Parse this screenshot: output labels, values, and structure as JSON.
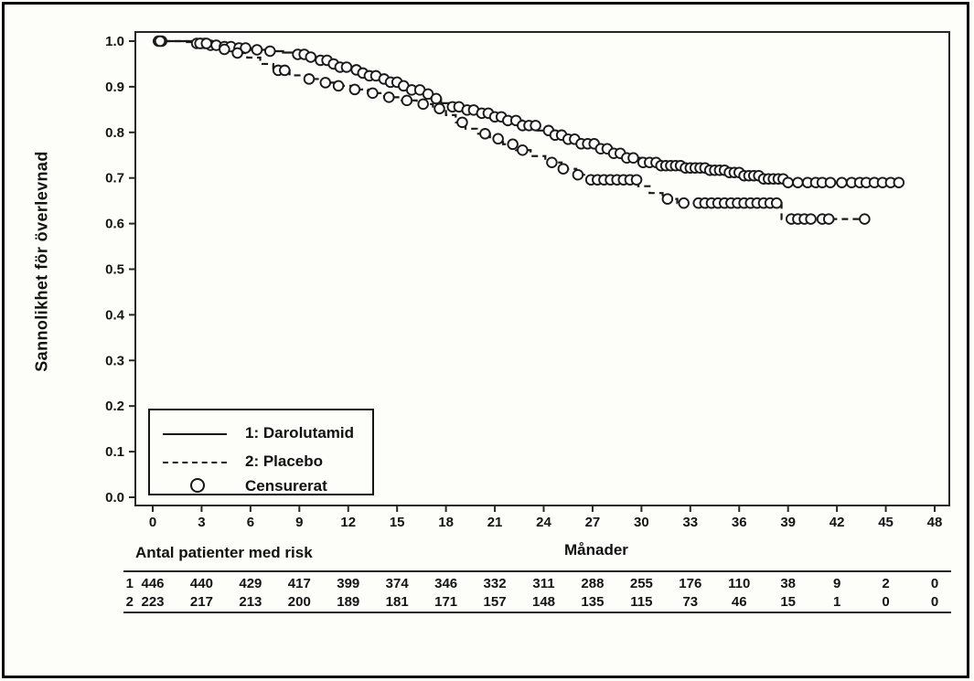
{
  "chart_data": {
    "type": "line",
    "subtype": "kaplan-meier-step",
    "title": "",
    "xlabel": "Månader",
    "ylabel": "Sannolikhet för överlevnad",
    "xlim": [
      0,
      48
    ],
    "ylim": [
      0.0,
      1.0
    ],
    "grid": false,
    "xticks": [
      0,
      3,
      6,
      9,
      12,
      15,
      18,
      21,
      24,
      27,
      30,
      33,
      36,
      39,
      42,
      45,
      48
    ],
    "yticks": [
      0.0,
      0.1,
      0.2,
      0.3,
      0.4,
      0.5,
      0.6,
      0.7,
      0.8,
      0.9,
      1.0
    ],
    "colors": {
      "curve": "#1a1a1a",
      "axis": "#262626",
      "background": "#fdfdfa"
    },
    "legend_position": "lower-left-inset",
    "series": [
      {
        "name": "1: Darolutamid",
        "line_style": "solid",
        "color": "#1a1a1a",
        "end_month": 46.0,
        "steps": [
          [
            0,
            1.0
          ],
          [
            2.1,
            0.998
          ],
          [
            2.7,
            0.995
          ],
          [
            3.4,
            0.991
          ],
          [
            4.2,
            0.988
          ],
          [
            5.0,
            0.985
          ],
          [
            6.0,
            0.981
          ],
          [
            7.0,
            0.978
          ],
          [
            8.0,
            0.975
          ],
          [
            8.8,
            0.971
          ],
          [
            9.5,
            0.965
          ],
          [
            10.2,
            0.958
          ],
          [
            10.8,
            0.95
          ],
          [
            11.4,
            0.943
          ],
          [
            12.0,
            0.937
          ],
          [
            12.6,
            0.93
          ],
          [
            13.2,
            0.924
          ],
          [
            13.9,
            0.917
          ],
          [
            14.6,
            0.91
          ],
          [
            15.3,
            0.902
          ],
          [
            15.9,
            0.893
          ],
          [
            16.5,
            0.884
          ],
          [
            17.1,
            0.874
          ],
          [
            17.7,
            0.864
          ],
          [
            18.3,
            0.856
          ],
          [
            19.1,
            0.849
          ],
          [
            20.0,
            0.842
          ],
          [
            20.9,
            0.834
          ],
          [
            21.8,
            0.826
          ],
          [
            22.7,
            0.815
          ],
          [
            23.6,
            0.804
          ],
          [
            24.5,
            0.794
          ],
          [
            25.4,
            0.785
          ],
          [
            26.3,
            0.775
          ],
          [
            27.2,
            0.764
          ],
          [
            28.1,
            0.754
          ],
          [
            29.0,
            0.744
          ],
          [
            30.0,
            0.734
          ],
          [
            31.0,
            0.727
          ],
          [
            32.5,
            0.722
          ],
          [
            34.0,
            0.717
          ],
          [
            35.3,
            0.712
          ],
          [
            36.2,
            0.705
          ],
          [
            37.3,
            0.698
          ],
          [
            38.8,
            0.69
          ]
        ],
        "censor_months": [
          0.35,
          0.55,
          2.7,
          2.95,
          3.2,
          3.55,
          3.9,
          4.4,
          4.8,
          5.3,
          5.7,
          6.4,
          7.2,
          8.9,
          9.3,
          9.7,
          10.3,
          10.7,
          11.1,
          11.5,
          11.9,
          12.5,
          12.9,
          13.3,
          13.7,
          14.2,
          14.6,
          15.0,
          15.4,
          15.9,
          16.4,
          16.9,
          17.4,
          18.4,
          18.8,
          19.3,
          19.7,
          20.2,
          20.6,
          21.0,
          21.4,
          21.8,
          22.3,
          22.7,
          23.1,
          23.5,
          24.3,
          24.7,
          25.1,
          25.5,
          25.9,
          26.3,
          26.7,
          27.1,
          27.5,
          27.9,
          28.3,
          28.7,
          29.1,
          29.5,
          30.1,
          30.5,
          30.9,
          31.2,
          31.5,
          31.8,
          32.1,
          32.4,
          32.7,
          33.0,
          33.3,
          33.6,
          33.9,
          34.2,
          34.5,
          34.8,
          35.1,
          35.4,
          35.7,
          36.0,
          36.3,
          36.6,
          36.9,
          37.2,
          37.5,
          37.8,
          38.1,
          38.4,
          38.7,
          39.0,
          39.6,
          40.2,
          40.7,
          41.1,
          41.6,
          42.3,
          42.9,
          43.4,
          43.8,
          44.3,
          44.8,
          45.3,
          45.8
        ]
      },
      {
        "name": "2: Placebo",
        "line_style": "dashed",
        "color": "#1a1a1a",
        "end_month": 44.0,
        "steps": [
          [
            0,
            1.0
          ],
          [
            2.6,
            0.995
          ],
          [
            3.4,
            0.989
          ],
          [
            4.2,
            0.982
          ],
          [
            5.0,
            0.974
          ],
          [
            5.8,
            0.964
          ],
          [
            6.6,
            0.95
          ],
          [
            7.4,
            0.936
          ],
          [
            8.4,
            0.925
          ],
          [
            9.4,
            0.917
          ],
          [
            10.4,
            0.909
          ],
          [
            11.4,
            0.902
          ],
          [
            12.3,
            0.894
          ],
          [
            13.2,
            0.886
          ],
          [
            14.2,
            0.877
          ],
          [
            15.2,
            0.87
          ],
          [
            16.2,
            0.862
          ],
          [
            17.2,
            0.852
          ],
          [
            18.0,
            0.838
          ],
          [
            18.6,
            0.822
          ],
          [
            19.2,
            0.808
          ],
          [
            19.9,
            0.797
          ],
          [
            20.7,
            0.786
          ],
          [
            21.5,
            0.774
          ],
          [
            22.3,
            0.761
          ],
          [
            23.2,
            0.748
          ],
          [
            24.1,
            0.734
          ],
          [
            25.1,
            0.72
          ],
          [
            26.0,
            0.707
          ],
          [
            26.7,
            0.696
          ],
          [
            29.8,
            0.682
          ],
          [
            30.5,
            0.667
          ],
          [
            31.3,
            0.654
          ],
          [
            32.2,
            0.645
          ],
          [
            38.6,
            0.61
          ]
        ],
        "censor_months": [
          0.45,
          2.9,
          3.3,
          4.4,
          5.2,
          7.7,
          8.1,
          9.6,
          10.6,
          11.4,
          12.4,
          13.5,
          14.5,
          15.6,
          16.6,
          17.6,
          19.0,
          20.4,
          21.2,
          22.1,
          22.7,
          24.5,
          25.2,
          26.1,
          26.9,
          27.3,
          27.7,
          28.1,
          28.5,
          28.9,
          29.3,
          29.7,
          31.6,
          32.6,
          33.5,
          33.9,
          34.3,
          34.7,
          35.1,
          35.5,
          35.9,
          36.3,
          36.7,
          37.1,
          37.5,
          37.9,
          38.3,
          39.2,
          39.6,
          40.0,
          40.4,
          41.1,
          41.5,
          43.7
        ]
      }
    ],
    "legend": {
      "items": [
        {
          "marker": "solid-line",
          "label": "1: Darolutamid"
        },
        {
          "marker": "dashed-line",
          "label": "2: Placebo"
        },
        {
          "marker": "circle",
          "label": "Censurerat"
        }
      ]
    },
    "risk_table": {
      "title": "Antal patienter med risk",
      "months": [
        0,
        3,
        6,
        9,
        12,
        15,
        18,
        21,
        24,
        27,
        30,
        33,
        36,
        39,
        42,
        45,
        48
      ],
      "rows": [
        {
          "label": "1",
          "values": [
            446,
            440,
            429,
            417,
            399,
            374,
            346,
            332,
            311,
            288,
            255,
            176,
            110,
            38,
            9,
            2,
            0
          ]
        },
        {
          "label": "2",
          "values": [
            223,
            217,
            213,
            200,
            189,
            181,
            171,
            157,
            148,
            135,
            115,
            73,
            46,
            15,
            1,
            0,
            0
          ]
        }
      ]
    }
  }
}
